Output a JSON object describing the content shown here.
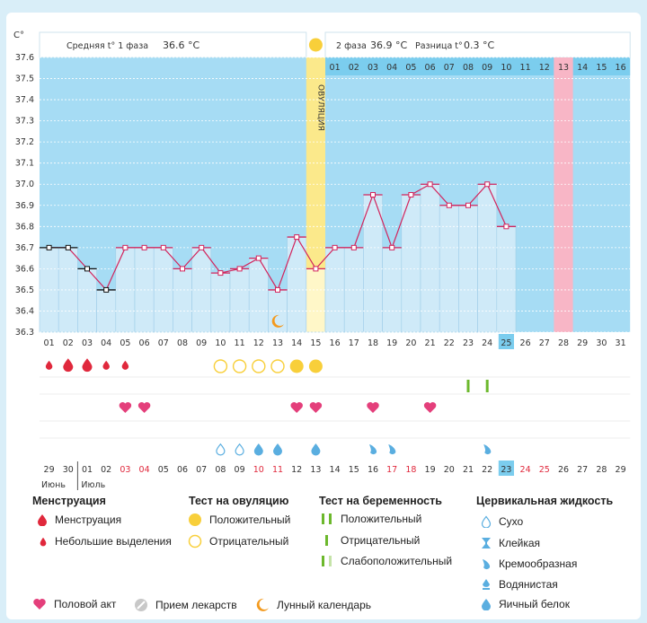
{
  "chart_data": {
    "type": "line",
    "title": "",
    "yunit": "C°",
    "ylim": [
      36.3,
      37.6
    ],
    "yticks": [
      "37.6",
      "37.5",
      "37.4",
      "37.3",
      "37.2",
      "37.1",
      "37.0",
      "36.9",
      "36.8",
      "36.7",
      "36.6",
      "36.5",
      "36.4",
      "36.3"
    ],
    "days": [
      "01",
      "02",
      "03",
      "04",
      "05",
      "06",
      "07",
      "08",
      "09",
      "10",
      "11",
      "12",
      "13",
      "14",
      "15",
      "16",
      "17",
      "18",
      "19",
      "20",
      "21",
      "22",
      "23",
      "24",
      "25",
      "26",
      "27",
      "28",
      "29",
      "30",
      "31"
    ],
    "today_day": "25",
    "temps": [
      36.7,
      36.7,
      36.6,
      36.5,
      36.7,
      36.7,
      36.7,
      36.6,
      36.7,
      36.58,
      36.6,
      36.65,
      36.5,
      36.75,
      36.6,
      36.7,
      36.7,
      36.95,
      36.7,
      36.95,
      37.0,
      36.9,
      36.9,
      37.0,
      36.8,
      null,
      null,
      null,
      null,
      null,
      null
    ],
    "black_marked_days": [
      1,
      2,
      3,
      4
    ],
    "ovulation_day": 15,
    "ovulation_label": "ОВУЛЯЦИЯ",
    "highlight_day_pink": 28,
    "phase1_label": "Средняя t° 1 фаза",
    "phase1_value": "36.6 °C",
    "phase2_label": "2 фаза",
    "phase2_value": "36.9 °C",
    "diff_label": "Разница t°",
    "diff_value": "0.3 °C",
    "phase2_days": [
      "01",
      "02",
      "03",
      "04",
      "05",
      "06",
      "07",
      "08",
      "09",
      "10",
      "11",
      "12",
      "13",
      "14",
      "15",
      "16"
    ],
    "phase2_pink_day": "13",
    "cycle_days": [
      "29",
      "30",
      "01",
      "02",
      "03",
      "04",
      "05",
      "06",
      "07",
      "08",
      "09",
      "10",
      "11",
      "12",
      "13",
      "14",
      "15",
      "16",
      "17",
      "18",
      "19",
      "20",
      "21",
      "22",
      "23",
      "24",
      "25",
      "26",
      "27",
      "28",
      "29"
    ],
    "cycle_red_days": [
      "03",
      "04",
      "10",
      "11",
      "17",
      "18",
      "24",
      "25"
    ],
    "cycle_today": "23",
    "month_june": "Июнь",
    "month_july": "Июль",
    "menstruation": {
      "big": [
        2,
        3
      ],
      "small": [
        1,
        4,
        5
      ]
    },
    "ovulation_test": {
      "positive": [
        14,
        15
      ],
      "negative": [
        10,
        11,
        12,
        13
      ]
    },
    "pregnancy_test": {
      "negative": [
        23,
        24
      ]
    },
    "intercourse_days": [
      5,
      6,
      14,
      15,
      18,
      21
    ],
    "cervical": {
      "dry": [
        10,
        11
      ],
      "eggwhite": [
        12,
        13,
        15
      ],
      "creamy": [
        18,
        19,
        24
      ]
    },
    "moon_day": 13,
    "colors": {
      "sky": "#a6dcf4",
      "phase": "#7bcdee",
      "bar": "#cfeaf8",
      "line": "#d2245c",
      "ovulation": "#fbe98b",
      "pink": "#f8b6c6",
      "yellow": "#f8cf3a",
      "red": "#e0283c",
      "heart": "#e43f7b",
      "green": "#6cb82c"
    }
  },
  "legend": {
    "menstruation": {
      "title": "Менструация",
      "items": [
        "Менструация",
        "Небольшие выделения"
      ]
    },
    "ovulation_test": {
      "title": "Тест на овуляцию",
      "items": [
        "Положительный",
        "Отрицательный"
      ]
    },
    "pregnancy_test": {
      "title": "Тест на беременность",
      "items": [
        "Положительный",
        "Отрицательный",
        "Слабоположительный"
      ]
    },
    "cervical": {
      "title": "Цервикальная жидкость",
      "items": [
        "Сухо",
        "Клейкая",
        "Кремообразная",
        "Водянистая",
        "Яичный белок"
      ]
    },
    "bottom": {
      "intercourse": "Половой акт",
      "medication": "Прием лекарств",
      "moon": "Лунный календарь"
    }
  }
}
